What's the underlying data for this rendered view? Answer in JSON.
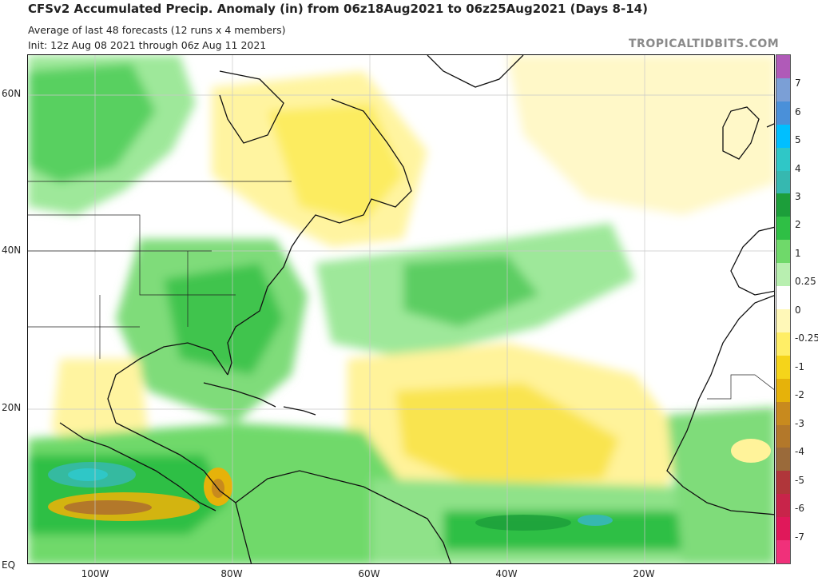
{
  "header": {
    "title": "CFSv2 Accumulated Precip. Anomaly (in) from 06z18Aug2021 to 06z25Aug2021 (Days 8-14)",
    "subtitle": "Average of last 48 forecasts (12 runs x 4 members)",
    "init": "Init: 12z Aug 08 2021 through 06z Aug 11 2021",
    "watermark": "TROPICALTIDBITS.COM"
  },
  "map": {
    "lat_labels": [
      "60N",
      "40N",
      "20N",
      "EQ"
    ],
    "lon_labels": [
      "100W",
      "80W",
      "60W",
      "40W",
      "20W"
    ]
  },
  "colorbar": {
    "labels": [
      "7",
      "6",
      "5",
      "4",
      "3",
      "2",
      "1",
      "0.25",
      "0",
      "-0.25",
      "-1",
      "-2",
      "-3",
      "-4",
      "-5",
      "-6",
      "-7"
    ],
    "colors": [
      "#b05ab8",
      "#7b9fd6",
      "#4a90d9",
      "#00bfff",
      "#2fc7c7",
      "#36b8b0",
      "#1c9e3a",
      "#2fbf45",
      "#6fd96a",
      "#b8efb0",
      "#ffffff",
      "#fff8b8",
      "#ffee66",
      "#f5d41a",
      "#e6b20a",
      "#c88a1e",
      "#b3782a",
      "#9a6a3a",
      "#b0363a",
      "#c8244a",
      "#e0185a",
      "#f0307a"
    ]
  }
}
